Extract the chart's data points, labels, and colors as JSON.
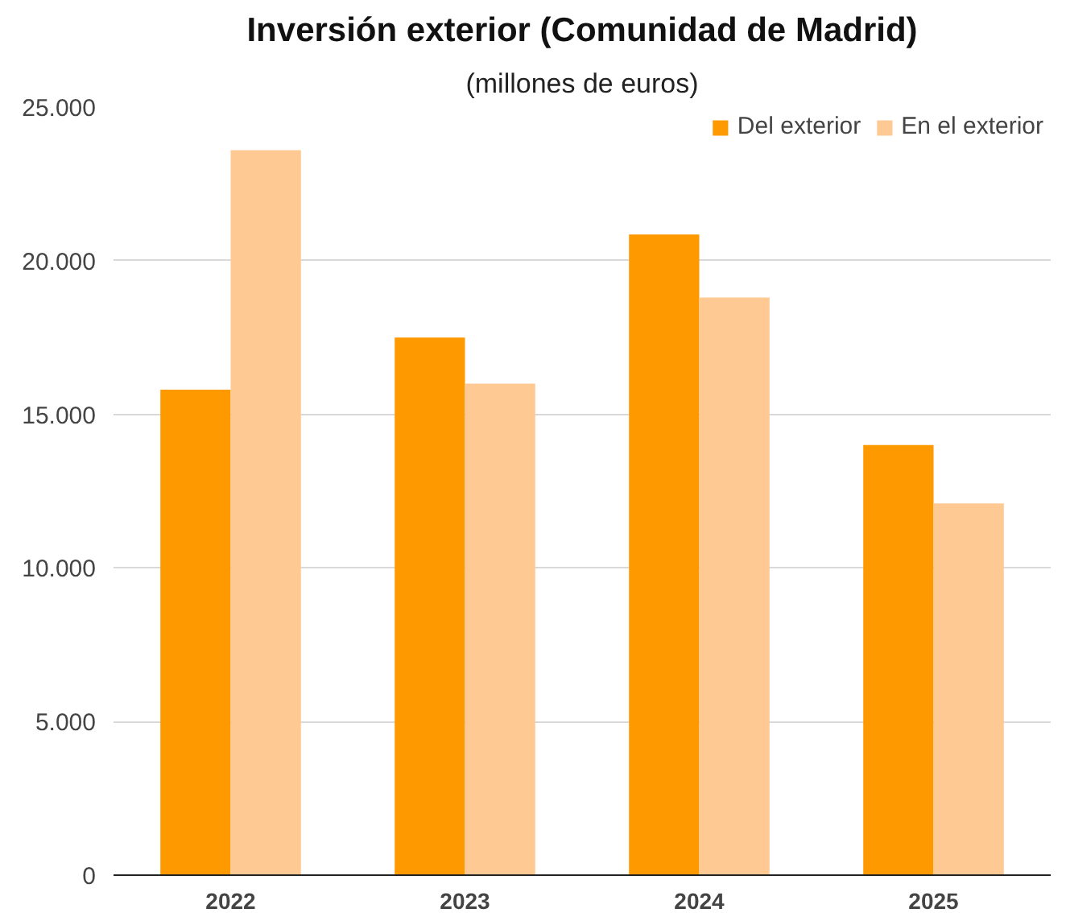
{
  "chart_data": {
    "type": "bar",
    "title": "Inversión exterior (Comunidad de Madrid)",
    "subtitle": "(millones de euros)",
    "categories": [
      "2022",
      "2023",
      "2024",
      "2025"
    ],
    "series": [
      {
        "name": "Del exterior",
        "color": "#ff9900",
        "values": [
          15800,
          17500,
          20850,
          14000
        ]
      },
      {
        "name": "En el exterior",
        "color": "#ffc993",
        "values": [
          23600,
          16000,
          18800,
          12100
        ]
      }
    ],
    "ylim": [
      0,
      25000
    ],
    "yticks": [
      {
        "value": 0,
        "label": "0"
      },
      {
        "value": 5000,
        "label": "5.000"
      },
      {
        "value": 10000,
        "label": "10.000"
      },
      {
        "value": 15000,
        "label": "15.000"
      },
      {
        "value": 20000,
        "label": "20.000"
      },
      {
        "value": 25000,
        "label": "25.000"
      }
    ],
    "grid": "y",
    "legend": "top right"
  }
}
